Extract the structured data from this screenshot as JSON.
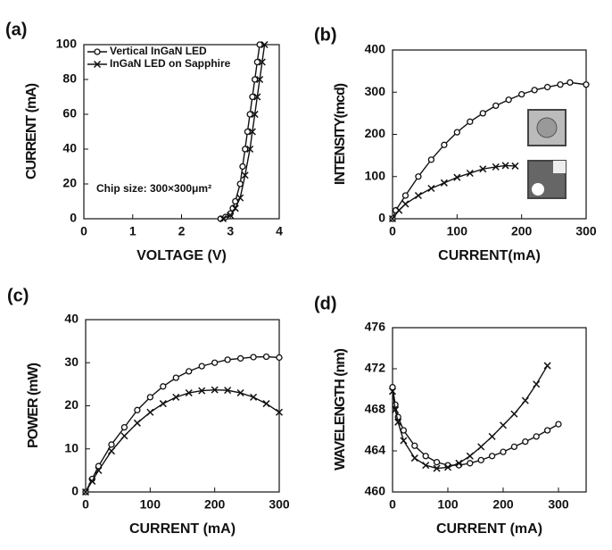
{
  "chart_data": [
    {
      "type": "line",
      "label": "(a)",
      "xlabel": "VOLTAGE (V)",
      "ylabel": "CURRENT (mA)",
      "xlim": [
        0,
        4
      ],
      "xticks": [
        0,
        1,
        2,
        3,
        4
      ],
      "ylim": [
        0,
        100
      ],
      "yticks": [
        0,
        20,
        40,
        60,
        80,
        100
      ],
      "legend": "upper left",
      "annotation": "Chip size: 300×300μm²",
      "series": [
        {
          "name": "Vertical InGaN LED",
          "color": "#111111",
          "marker": "o",
          "x": [
            2.8,
            2.9,
            3.0,
            3.05,
            3.1,
            3.2,
            3.25,
            3.3,
            3.35,
            3.4,
            3.45,
            3.5,
            3.55,
            3.6
          ],
          "values": [
            0,
            1,
            3,
            6,
            10,
            20,
            30,
            40,
            50,
            60,
            70,
            80,
            90,
            100
          ]
        },
        {
          "name": "InGaN LED on Sapphire",
          "color": "#111111",
          "marker": "x",
          "x": [
            2.85,
            3.0,
            3.1,
            3.2,
            3.3,
            3.4,
            3.45,
            3.5,
            3.55,
            3.6,
            3.65,
            3.7
          ],
          "values": [
            0,
            2,
            6,
            12,
            25,
            40,
            50,
            60,
            70,
            80,
            90,
            100
          ]
        }
      ]
    },
    {
      "type": "line",
      "label": "(b)",
      "xlabel": "CURRENT(mA)",
      "ylabel": "INTENSITY(mcd)",
      "xlim": [
        0,
        300
      ],
      "xticks": [
        0,
        100,
        200,
        300
      ],
      "ylim": [
        0,
        400
      ],
      "yticks": [
        0,
        100,
        200,
        300,
        400
      ],
      "series": [
        {
          "color": "#111111",
          "marker": "o",
          "x": [
            0,
            5,
            20,
            40,
            60,
            80,
            100,
            120,
            140,
            160,
            180,
            200,
            220,
            240,
            260,
            275,
            300
          ],
          "values": [
            0,
            20,
            55,
            100,
            140,
            175,
            205,
            230,
            250,
            268,
            282,
            295,
            305,
            312,
            318,
            323,
            318
          ]
        },
        {
          "color": "#111111",
          "marker": "x",
          "x": [
            0,
            10,
            20,
            40,
            60,
            80,
            100,
            120,
            140,
            160,
            175,
            190
          ],
          "values": [
            0,
            20,
            35,
            55,
            72,
            85,
            98,
            108,
            118,
            123,
            126,
            125
          ]
        }
      ]
    },
    {
      "type": "line",
      "label": "(c)",
      "xlabel": "CURRENT (mA)",
      "ylabel": "POWER (mW)",
      "xlim": [
        0,
        300
      ],
      "xticks": [
        0,
        100,
        200,
        300
      ],
      "ylim": [
        0,
        40
      ],
      "yticks": [
        0,
        10,
        20,
        30,
        40
      ],
      "series": [
        {
          "color": "#111111",
          "marker": "o",
          "x": [
            0,
            10,
            20,
            40,
            60,
            80,
            100,
            120,
            140,
            160,
            180,
            200,
            220,
            240,
            260,
            280,
            300
          ],
          "values": [
            0,
            3,
            6,
            11,
            15,
            19,
            22,
            24.5,
            26.5,
            28,
            29.2,
            30,
            30.7,
            31,
            31.3,
            31.4,
            31.2
          ]
        },
        {
          "color": "#111111",
          "marker": "x",
          "x": [
            0,
            10,
            20,
            40,
            60,
            80,
            100,
            120,
            140,
            160,
            180,
            200,
            220,
            240,
            260,
            280,
            300
          ],
          "values": [
            0,
            2.5,
            5,
            9.5,
            13,
            16,
            18.5,
            20.5,
            22,
            23,
            23.5,
            23.7,
            23.6,
            23,
            22,
            20.5,
            18.5
          ]
        }
      ]
    },
    {
      "type": "line",
      "label": "(d)",
      "xlabel": "CURRENT (mA)",
      "ylabel": "WAVELENGTH (nm)",
      "xlim": [
        0,
        350
      ],
      "xticks": [
        0,
        100,
        200,
        300
      ],
      "ylim": [
        460,
        476
      ],
      "yticks": [
        460,
        464,
        468,
        472,
        476
      ],
      "series": [
        {
          "color": "#111111",
          "marker": "o",
          "x": [
            0,
            5,
            10,
            20,
            40,
            60,
            80,
            100,
            120,
            140,
            160,
            180,
            200,
            220,
            240,
            260,
            280,
            300
          ],
          "values": [
            470.2,
            468.5,
            467.3,
            466,
            464.5,
            463.5,
            462.9,
            462.6,
            462.6,
            462.8,
            463.1,
            463.5,
            463.9,
            464.4,
            464.9,
            465.4,
            466,
            466.6
          ]
        },
        {
          "color": "#111111",
          "marker": "x",
          "x": [
            0,
            5,
            10,
            20,
            40,
            60,
            80,
            100,
            120,
            140,
            160,
            180,
            200,
            220,
            240,
            260,
            280
          ],
          "values": [
            469.8,
            468,
            466.8,
            465,
            463.3,
            462.6,
            462.3,
            462.4,
            462.8,
            463.5,
            464.4,
            465.4,
            466.5,
            467.6,
            468.9,
            470.5,
            472.3
          ]
        }
      ]
    }
  ]
}
